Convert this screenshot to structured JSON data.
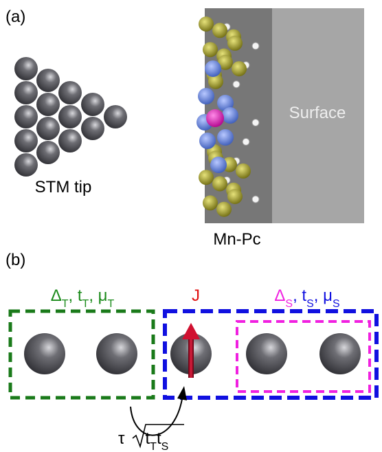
{
  "panel_a": {
    "label": "(a)",
    "tip_label": "STM tip",
    "surface_label": "Surface",
    "molecule_label": "Mn-Pc"
  },
  "panel_b": {
    "label": "(b)",
    "tip_params": [
      "Δ",
      "T",
      ", t",
      "T",
      ", μ",
      "T"
    ],
    "coupling_label": "J",
    "surface_params": [
      "Δ",
      "S",
      ", t",
      "S",
      ", μ",
      "S"
    ],
    "hopping": [
      "τ",
      "t",
      "T",
      "t",
      "S"
    ]
  }
}
